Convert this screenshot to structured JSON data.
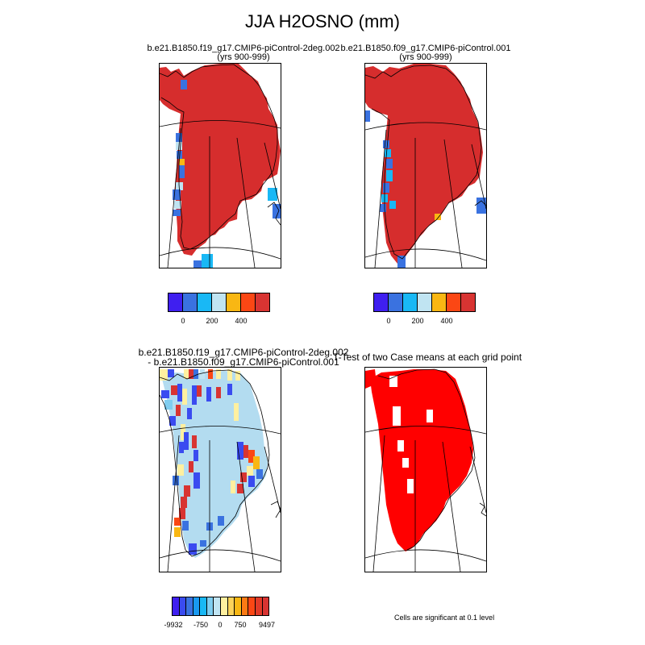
{
  "page": {
    "title": "JJA H2OSNO (mm)"
  },
  "panels": {
    "top_left": {
      "title_line1": "b.e21.B1850.f19_g17.CMIP6-piControl-2deg.002",
      "title_line2": "(yrs 900-999)"
    },
    "top_right": {
      "title_line1": "b.e21.B1850.f09_g17.CMIP6-piControl.001",
      "title_line2": "(yrs 900-999)"
    },
    "bottom_left": {
      "title_line1": "b.e21.B1850.f19_g17.CMIP6-piControl-2deg.002",
      "title_line2": "- b.e21.B1850.f09_g17.CMIP6-piControl.001"
    },
    "bottom_right": {
      "title_line1": "T-Test of two Case means at each grid point",
      "note": "Cells are significant at 0.1 level"
    }
  },
  "colorbars": {
    "snow": {
      "colors": [
        "#3f1ff0",
        "#3a72e0",
        "#19b8f5",
        "#c0e4f2",
        "#f9b713",
        "#fb4714",
        "#d83432"
      ],
      "labels": [
        "0",
        "200",
        "400"
      ]
    },
    "diff": {
      "colors": [
        "#3f1ff0",
        "#3a4bf0",
        "#3a72e0",
        "#1999f0",
        "#19b8f5",
        "#7fcdf0",
        "#c0e4f2",
        "#fff0a0",
        "#fdd35a",
        "#f9b713",
        "#fb7a14",
        "#fb4714",
        "#e23a28",
        "#d83432"
      ],
      "labels": [
        "-9932",
        "-750",
        "0",
        "750",
        "9497"
      ]
    }
  },
  "colors": {
    "ice_red": "#d62d2d",
    "ttest_red": "#ff0000",
    "diff_ice": "#b3dcf0"
  }
}
